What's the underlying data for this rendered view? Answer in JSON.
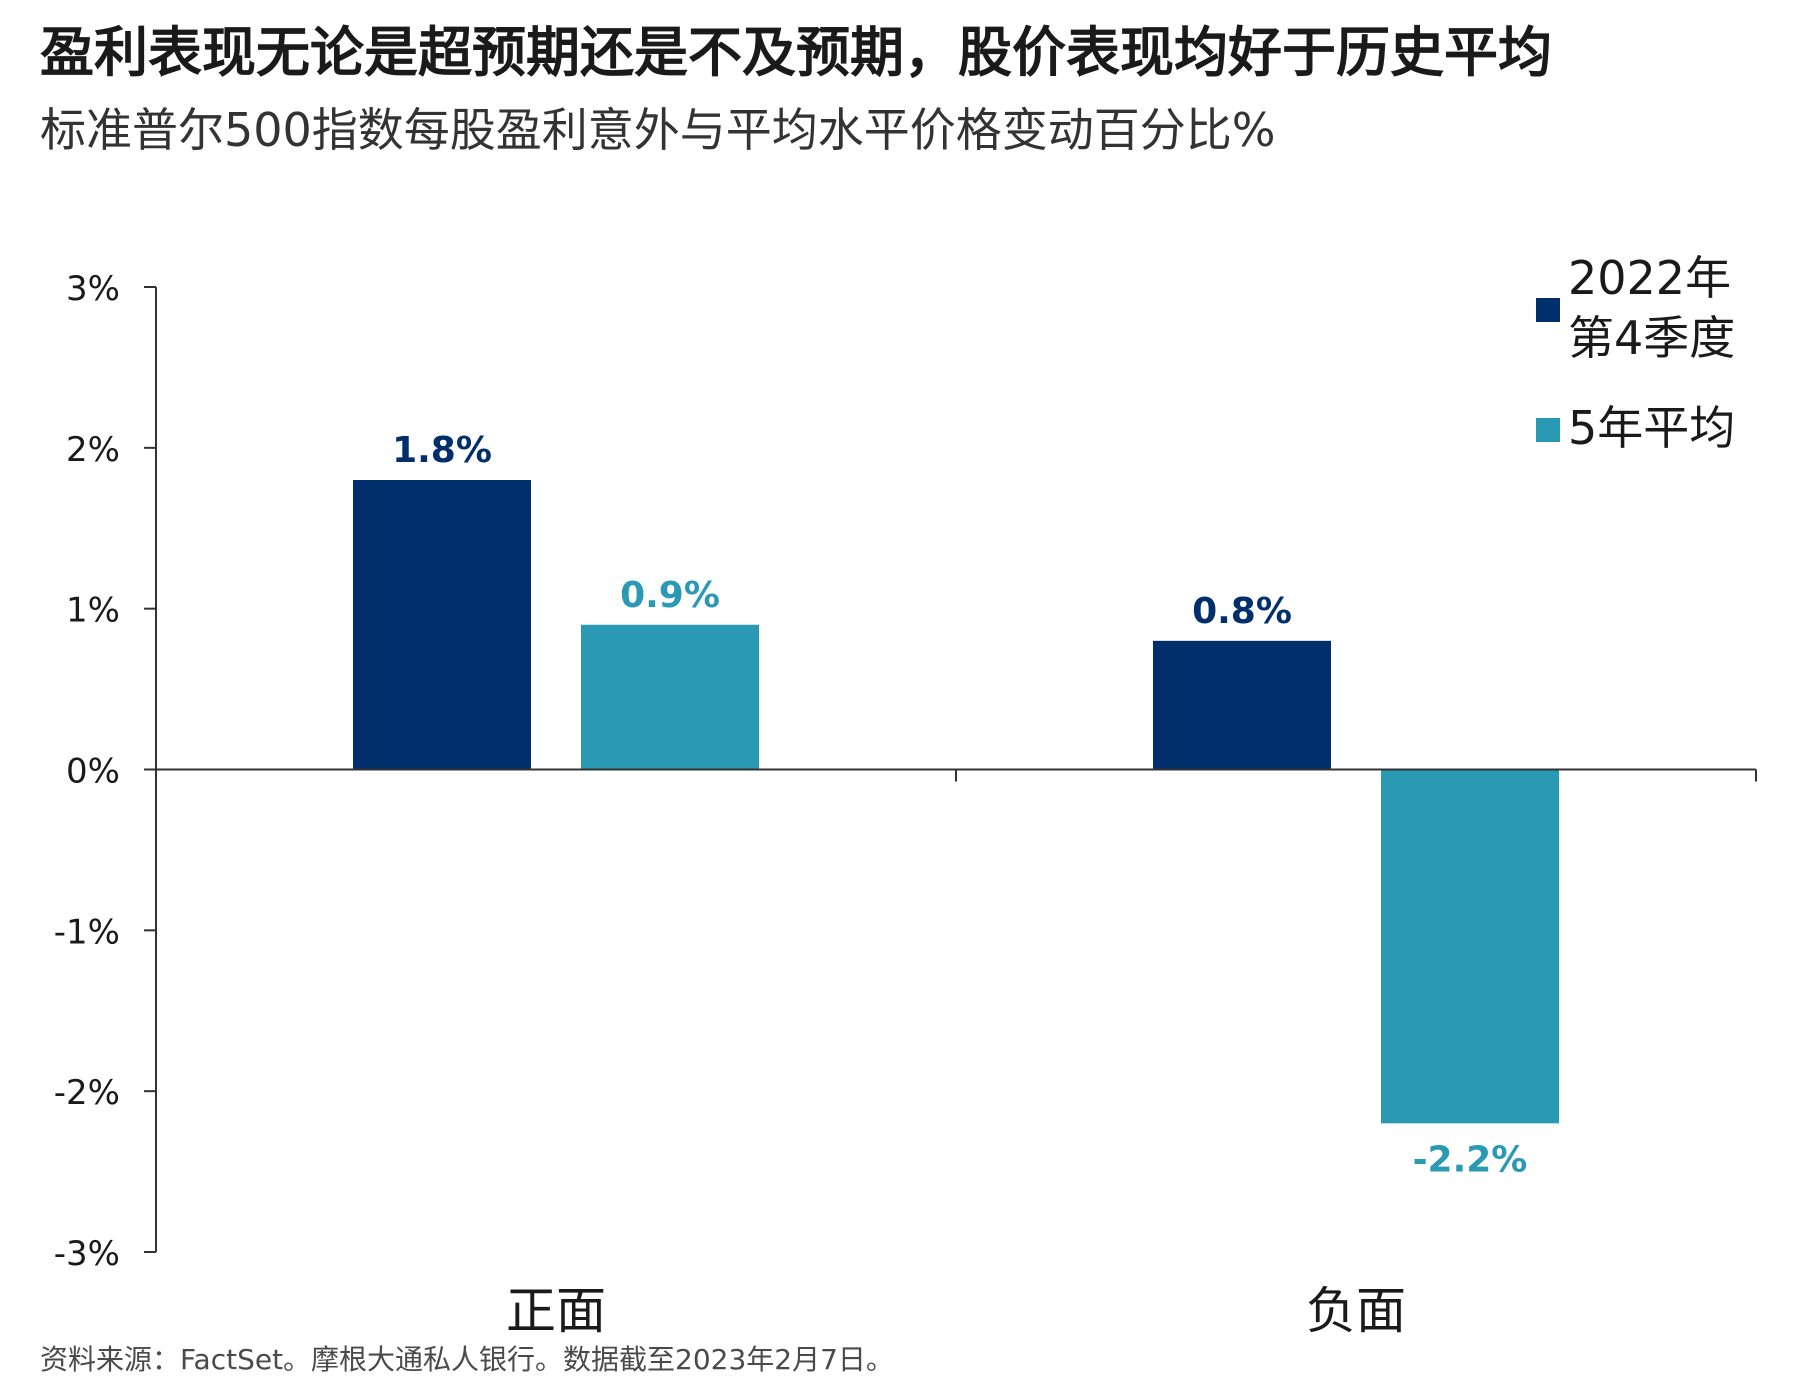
{
  "title": "盈利表现无论是超预期还是不及预期，股价表现均好于历史平均",
  "subtitle": "标准普尔500指数每股盈利意外与平均水平价格变动百分比%",
  "source": "资料来源：FactSet。摩根大通私人银行。数据截至2023年2月7日。",
  "chart_data": {
    "type": "bar",
    "categories": [
      "正面",
      "负面"
    ],
    "series": [
      {
        "name": "2022年第4季度",
        "name_lines": [
          "2022年",
          "第4季度"
        ],
        "color": "#002f6c",
        "values": [
          1.8,
          0.8
        ],
        "labels": [
          "1.8%",
          "0.8%"
        ]
      },
      {
        "name": "5年平均",
        "name_lines": [
          "5年平均"
        ],
        "color": "#2a9ab4",
        "values": [
          0.9,
          -2.2
        ],
        "labels": [
          "0.9%",
          "-2.2%"
        ]
      }
    ],
    "ylim": [
      -3,
      3
    ],
    "yticks": [
      3,
      2,
      1,
      0,
      -1,
      -2,
      -3
    ],
    "ytick_labels": [
      "3%",
      "2%",
      "1%",
      "0%",
      "-1%",
      "-2%",
      "-3%"
    ],
    "xlabel": "",
    "ylabel": "",
    "grid": false,
    "legend_position": "top-right"
  }
}
